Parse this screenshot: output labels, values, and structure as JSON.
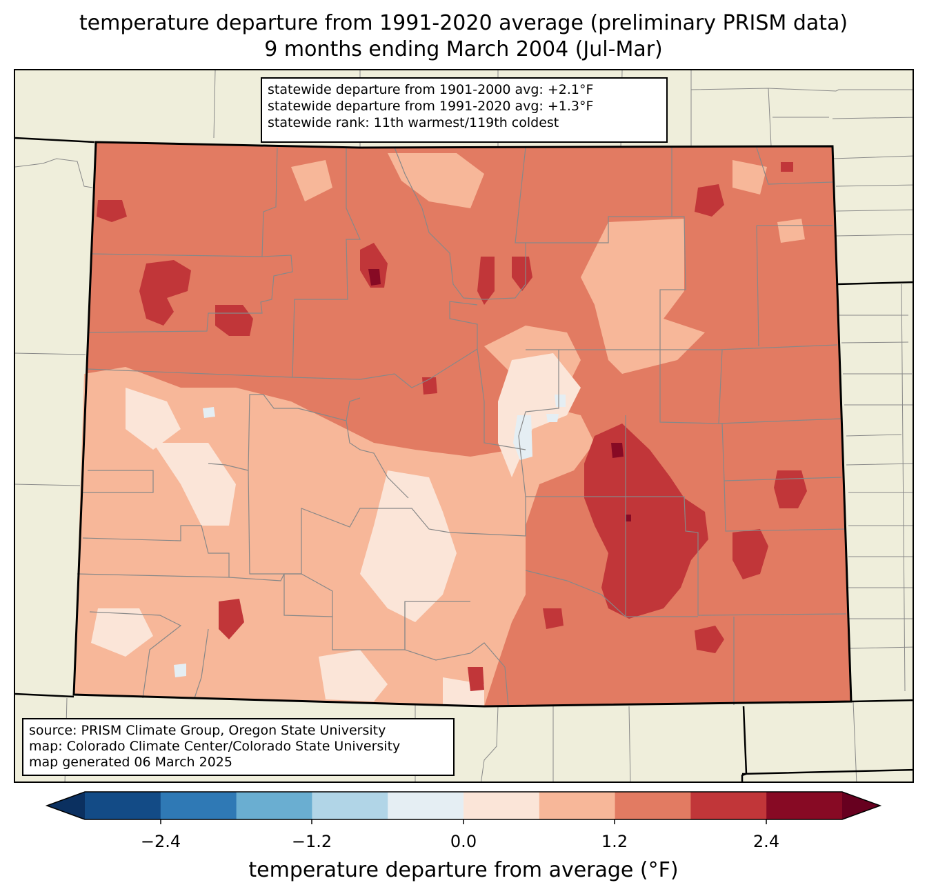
{
  "title": {
    "line1": "temperature departure from 1991-2020 average (preliminary PRISM data)",
    "line2": "9 months ending March 2004 (Jul-Mar)"
  },
  "stats": {
    "line1": "statewide departure from 1901-2000 avg: +2.1°F",
    "line2": "statewide departure from 1991-2020 avg: +1.3°F",
    "line3": "statewide rank: 11th warmest/119th coldest"
  },
  "source": {
    "line1": "source: PRISM Climate Group, Oregon State University",
    "line2": "map: Colorado Climate Center/Colorado State University",
    "line3": "map generated 06 March 2025"
  },
  "colorbar": {
    "label": "temperature departure from average (°F)",
    "ticks": [
      "−2.4",
      "−1.2",
      "0.0",
      "1.2",
      "2.4"
    ],
    "bins": [
      {
        "color": "#0b3060"
      },
      {
        "color": "#134b86"
      },
      {
        "color": "#2f79b5"
      },
      {
        "color": "#6aaed1"
      },
      {
        "color": "#b1d5e7"
      },
      {
        "color": "#e5eef3"
      },
      {
        "color": "#fbe5d8"
      },
      {
        "color": "#f7b799"
      },
      {
        "color": "#e27b62"
      },
      {
        "color": "#c13639"
      },
      {
        "color": "#870a24"
      },
      {
        "color": "#67001f"
      }
    ]
  },
  "colors": {
    "background": "#efeedb",
    "county_lines": "#888888"
  }
}
